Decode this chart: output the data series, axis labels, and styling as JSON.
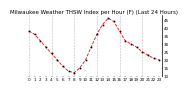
{
  "title": "Milwaukee Weather THSW Index per Hour (F) (Last 24 Hours)",
  "hours": [
    0,
    1,
    2,
    3,
    4,
    5,
    6,
    7,
    8,
    9,
    10,
    11,
    12,
    13,
    14,
    15,
    16,
    17,
    18,
    19,
    20,
    21,
    22,
    23
  ],
  "values": [
    38,
    36,
    32,
    28,
    24,
    20,
    16,
    13,
    12,
    15,
    20,
    28,
    36,
    42,
    46,
    44,
    38,
    32,
    30,
    28,
    25,
    23,
    21,
    20
  ],
  "line_color": "#ff0000",
  "marker_color": "#000000",
  "bg_color": "#ffffff",
  "grid_color": "#aaaaaa",
  "ylim_min": 10,
  "ylim_max": 48,
  "yticks": [
    10,
    15,
    20,
    25,
    30,
    35,
    40,
    45
  ],
  "title_fontsize": 4.0,
  "tick_fontsize": 3.0,
  "vgrid_interval": 4
}
